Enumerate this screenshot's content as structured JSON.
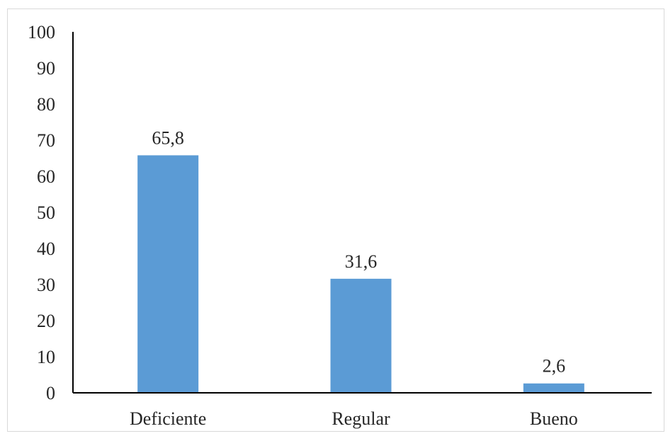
{
  "chart_data": {
    "type": "bar",
    "categories": [
      "Deficiente",
      "Regular",
      "Bueno"
    ],
    "values": [
      65.8,
      31.6,
      2.6
    ],
    "data_labels": [
      "65,8",
      "31,6",
      "2,6"
    ],
    "title": "",
    "xlabel": "",
    "ylabel": "",
    "ylim": [
      0,
      100
    ],
    "yticks": [
      0,
      10,
      20,
      30,
      40,
      50,
      60,
      70,
      80,
      90,
      100
    ],
    "grid": false,
    "legend": "none",
    "bar_color": "#5b9bd5"
  }
}
